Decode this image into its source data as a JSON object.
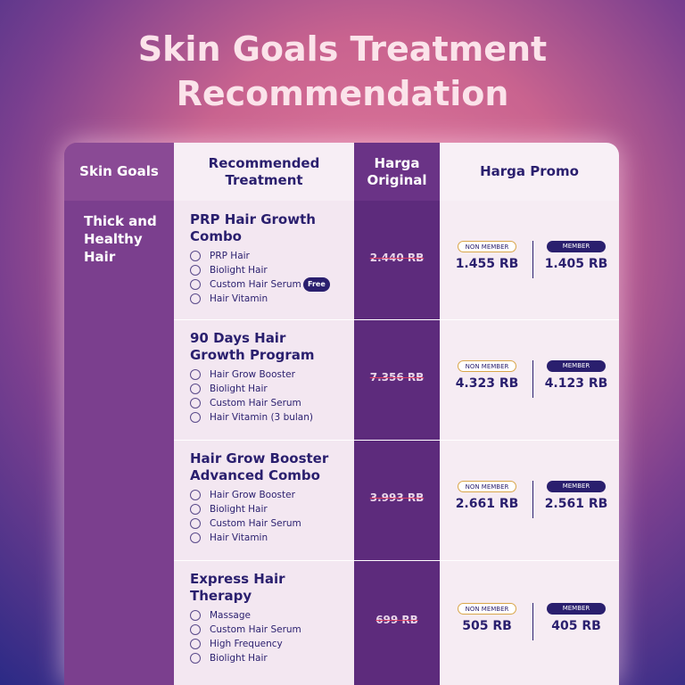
{
  "title": "Skin Goals Treatment Recommendation",
  "table": {
    "headers": [
      "Skin Goals",
      "Recommended Treatment",
      "Harga Original",
      "Harga Promo"
    ],
    "skin_goal": "Thick and Healthy Hair",
    "badges": {
      "non_member": "NON MEMBER",
      "member": "MEMBER"
    },
    "rows": [
      {
        "name": "PRP Hair Growth Combo",
        "items": [
          {
            "text": "PRP Hair"
          },
          {
            "text": "Biolight Hair"
          },
          {
            "text": "Custom Hair Serum",
            "badge": "Free"
          },
          {
            "text": "Hair Vitamin"
          }
        ],
        "original": "2.440 RB",
        "non_member": "1.455 RB",
        "member": "1.405 RB"
      },
      {
        "name": "90 Days Hair Growth Program",
        "items": [
          {
            "text": "Hair Grow Booster"
          },
          {
            "text": "Biolight Hair"
          },
          {
            "text": "Custom Hair Serum"
          },
          {
            "text": "Hair Vitamin (3 bulan)"
          }
        ],
        "original": "7.356 RB",
        "non_member": "4.323 RB",
        "member": "4.123 RB"
      },
      {
        "name": "Hair Grow Booster Advanced Combo",
        "items": [
          {
            "text": "Hair Grow Booster"
          },
          {
            "text": "Biolight Hair"
          },
          {
            "text": "Custom Hair Serum"
          },
          {
            "text": "Hair Vitamin"
          }
        ],
        "original": "3.993 RB",
        "non_member": "2.661 RB",
        "member": "2.561 RB"
      },
      {
        "name": "Express Hair Therapy",
        "items": [
          {
            "text": "Massage"
          },
          {
            "text": "Custom Hair Serum"
          },
          {
            "text": "High Frequency"
          },
          {
            "text": "Biolight Hair"
          }
        ],
        "original": "699 RB",
        "non_member": "505 RB",
        "member": "405 RB"
      }
    ]
  }
}
